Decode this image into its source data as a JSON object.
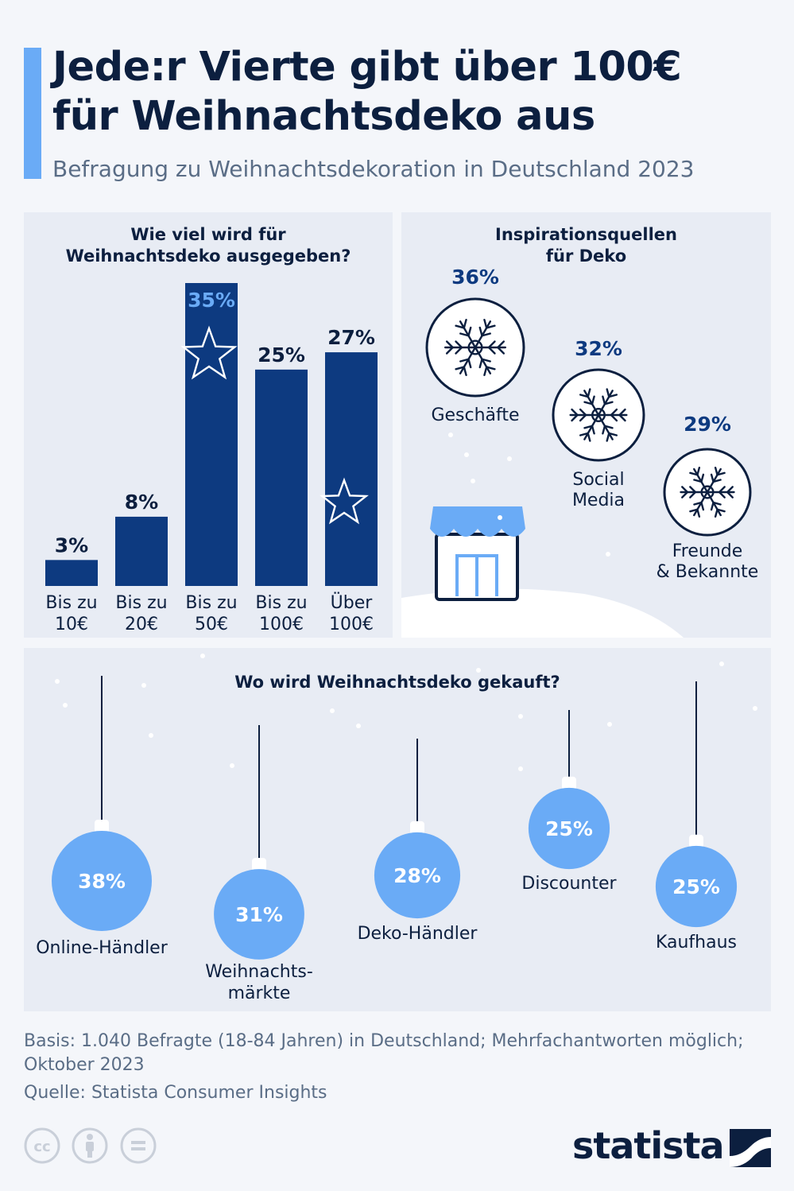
{
  "header": {
    "title_line1": "Jede:r Vierte gibt über 100€",
    "title_line2": "für Weihnachtsdeko aus",
    "subtitle": "Befragung zu Weihnachtsdekoration in Deutschland 2023"
  },
  "colors": {
    "navy": "#0d3a80",
    "light_blue": "#6aabf6",
    "text_dark": "#0c1f3f",
    "text_grey": "#5a6d86",
    "panel_bg": "#e8ecf4"
  },
  "chart_data": [
    {
      "type": "bar",
      "title": "Wie viel wird für Weihnachtsdeko ausgegeben?",
      "title_lines": [
        "Wie viel wird für",
        "Weihnachtsdeko ausgegeben?"
      ],
      "categories": [
        [
          "Bis zu",
          "10€"
        ],
        [
          "Bis zu",
          "20€"
        ],
        [
          "Bis zu",
          "50€"
        ],
        [
          "Bis zu",
          "100€"
        ],
        [
          "Über",
          "100€"
        ]
      ],
      "values": [
        3,
        8,
        35,
        25,
        27
      ],
      "value_labels": [
        "3%",
        "8%",
        "35%",
        "25%",
        "27%"
      ],
      "highlight_index": 2,
      "ylim": [
        0,
        35
      ]
    },
    {
      "type": "bar",
      "title": "Inspirationsquellen für Deko",
      "title_lines": [
        "Inspirationsquellen",
        "für Deko"
      ],
      "categories": [
        [
          "Geschäfte"
        ],
        [
          "Social",
          "Media"
        ],
        [
          "Freunde",
          "& Bekannte"
        ]
      ],
      "values": [
        36,
        32,
        29
      ],
      "value_labels": [
        "36%",
        "32%",
        "29%"
      ],
      "icon": "snowflake-icon"
    },
    {
      "type": "bar",
      "title": "Wo wird Weihnachtsdeko gekauft?",
      "categories": [
        [
          "Online-Händler"
        ],
        [
          "Weihnachts-",
          "märkte"
        ],
        [
          "Deko-Händler"
        ],
        [
          "Discounter"
        ],
        [
          "Kaufhaus"
        ]
      ],
      "values": [
        38,
        31,
        28,
        25,
        25
      ],
      "value_labels": [
        "38%",
        "31%",
        "28%",
        "25%",
        "25%"
      ],
      "icon": "christmas-bauble-icon"
    }
  ],
  "footer": {
    "basis_line1": "Basis: 1.040 Befragte (18-84 Jahren) in Deutschland; Mehrfachantworten möglich;",
    "basis_line2": "Oktober 2023",
    "source": "Quelle: Statista Consumer Insights",
    "brand": "statista",
    "license_icons": [
      "cc-icon",
      "by-icon",
      "nd-icon"
    ]
  }
}
